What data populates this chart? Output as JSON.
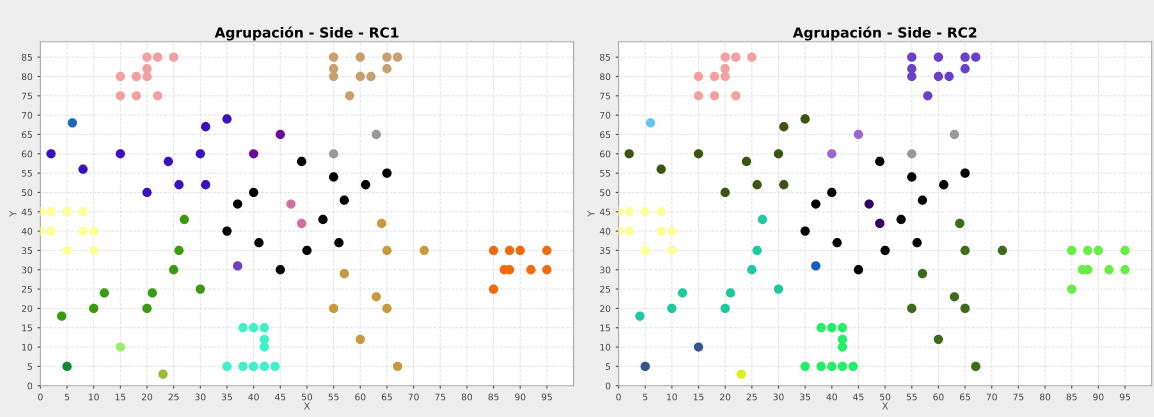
{
  "chart_data": [
    {
      "type": "scatter",
      "title": "Agrupación - Side - RC1",
      "xlabel": "X",
      "ylabel": "Y",
      "xlim": [
        0,
        100
      ],
      "ylim": [
        0,
        89
      ],
      "xticks": [
        0,
        5,
        10,
        15,
        20,
        25,
        30,
        35,
        40,
        45,
        50,
        55,
        60,
        65,
        70,
        75,
        80,
        85,
        90,
        95
      ],
      "yticks": [
        0,
        5,
        10,
        15,
        20,
        25,
        30,
        35,
        40,
        45,
        50,
        55,
        60,
        65,
        70,
        75,
        80,
        85
      ],
      "grid": true,
      "marker": "circle",
      "series": [
        {
          "color": "#f4a0a0",
          "x": [
            20,
            22,
            25,
            20,
            15,
            18,
            20,
            15,
            18,
            22
          ],
          "values": [
            85,
            85,
            85,
            82,
            80,
            80,
            80,
            75,
            75,
            75
          ]
        },
        {
          "color": "#1a6aba",
          "x": [
            6
          ],
          "values": [
            68
          ]
        },
        {
          "color": "#3a10c0",
          "x": [
            2,
            15,
            8,
            24,
            30,
            31,
            35,
            20,
            26,
            31
          ],
          "values": [
            60,
            60,
            56,
            58,
            60,
            67,
            69,
            50,
            52,
            52
          ]
        },
        {
          "color": "#6a0a9a",
          "x": [
            40,
            45
          ],
          "values": [
            60,
            65
          ]
        },
        {
          "color": "#ffff99",
          "x": [
            0,
            2,
            5,
            8,
            0,
            2,
            8,
            10,
            5,
            10
          ],
          "values": [
            45,
            45,
            45,
            45,
            40,
            40,
            40,
            40,
            35,
            35
          ]
        },
        {
          "color": "#3a9a10",
          "x": [
            27,
            26,
            25,
            30,
            12,
            21,
            10,
            20,
            4
          ],
          "values": [
            43,
            35,
            30,
            25,
            24,
            24,
            20,
            20,
            18
          ]
        },
        {
          "color": "#108a30",
          "x": [
            5
          ],
          "values": [
            5
          ]
        },
        {
          "color": "#99f066",
          "x": [
            15
          ],
          "values": [
            10
          ]
        },
        {
          "color": "#99bb33",
          "x": [
            23
          ],
          "values": [
            3
          ]
        },
        {
          "color": "#40f0c8",
          "x": [
            38,
            40,
            42,
            42,
            42,
            35,
            38,
            40,
            42,
            44
          ],
          "values": [
            15,
            15,
            15,
            12,
            10,
            5,
            5,
            5,
            5,
            5
          ]
        },
        {
          "color": "#000000",
          "x": [
            37,
            40,
            35,
            41,
            45,
            49,
            55,
            65,
            61,
            57,
            53,
            56,
            50
          ],
          "values": [
            47,
            50,
            40,
            37,
            30,
            58,
            54,
            55,
            52,
            48,
            43,
            37,
            35
          ]
        },
        {
          "color": "#7040c0",
          "x": [
            37
          ],
          "values": [
            31
          ]
        },
        {
          "color": "#d070a0",
          "x": [
            47,
            49
          ],
          "values": [
            47,
            42
          ]
        },
        {
          "color": "#999999",
          "x": [
            63,
            55
          ],
          "values": [
            65,
            60
          ]
        },
        {
          "color": "#c8a070",
          "x": [
            55,
            60,
            65,
            67,
            55,
            65,
            55,
            60,
            62,
            58
          ],
          "values": [
            85,
            85,
            85,
            85,
            82,
            82,
            80,
            80,
            80,
            75
          ]
        },
        {
          "color": "#c89a40",
          "x": [
            64,
            65,
            72,
            57,
            63,
            55,
            65,
            60,
            67
          ],
          "values": [
            42,
            35,
            35,
            29,
            23,
            20,
            20,
            12,
            5
          ]
        },
        {
          "color": "#f06a10",
          "x": [
            85,
            88,
            90,
            95,
            87,
            88,
            92,
            95,
            85
          ],
          "values": [
            35,
            35,
            35,
            35,
            30,
            30,
            30,
            30,
            25
          ]
        }
      ]
    },
    {
      "type": "scatter",
      "title": "Agrupación - Side - RC2",
      "xlabel": "X",
      "ylabel": "Y",
      "xlim": [
        0,
        100
      ],
      "ylim": [
        0,
        89
      ],
      "xticks": [
        0,
        5,
        10,
        15,
        20,
        25,
        30,
        35,
        40,
        45,
        50,
        55,
        60,
        65,
        70,
        75,
        80,
        85,
        90,
        95
      ],
      "yticks": [
        0,
        5,
        10,
        15,
        20,
        25,
        30,
        35,
        40,
        45,
        50,
        55,
        60,
        65,
        70,
        75,
        80,
        85
      ],
      "grid": true,
      "marker": "circle",
      "series": [
        {
          "color": "#f4a0a0",
          "x": [
            20,
            22,
            25,
            20,
            15,
            18,
            20,
            15,
            18,
            22
          ],
          "values": [
            85,
            85,
            85,
            82,
            80,
            80,
            80,
            75,
            75,
            75
          ]
        },
        {
          "color": "#66c4f0",
          "x": [
            6
          ],
          "values": [
            68
          ]
        },
        {
          "color": "#3a5510",
          "x": [
            2,
            15,
            8,
            24,
            30,
            31,
            35,
            20,
            26,
            31
          ],
          "values": [
            60,
            60,
            56,
            58,
            60,
            67,
            69,
            50,
            52,
            52
          ]
        },
        {
          "color": "#9966cc",
          "x": [
            40,
            45
          ],
          "values": [
            60,
            65
          ]
        },
        {
          "color": "#ffff99",
          "x": [
            0,
            2,
            5,
            8,
            0,
            2,
            8,
            10,
            5,
            10
          ],
          "values": [
            45,
            45,
            45,
            45,
            40,
            40,
            40,
            40,
            35,
            35
          ]
        },
        {
          "color": "#20c8a0",
          "x": [
            27,
            26,
            25,
            30,
            12,
            21,
            10,
            20,
            4
          ],
          "values": [
            43,
            35,
            30,
            25,
            24,
            24,
            20,
            20,
            18
          ]
        },
        {
          "color": "#335588",
          "x": [
            5
          ],
          "values": [
            5
          ]
        },
        {
          "color": "#335588",
          "x": [
            15
          ],
          "values": [
            10
          ]
        },
        {
          "color": "#ddee22",
          "x": [
            23
          ],
          "values": [
            3
          ]
        },
        {
          "color": "#22ee66",
          "x": [
            38,
            40,
            42,
            42,
            42,
            35,
            38,
            40,
            42,
            44
          ],
          "values": [
            15,
            15,
            15,
            12,
            10,
            5,
            5,
            5,
            5,
            5
          ]
        },
        {
          "color": "#000000",
          "x": [
            37,
            40,
            35,
            41,
            45,
            49,
            55,
            65,
            61,
            57,
            53,
            56,
            50
          ],
          "values": [
            47,
            50,
            40,
            37,
            30,
            58,
            54,
            55,
            52,
            48,
            43,
            37,
            35
          ]
        },
        {
          "color": "#1060c0",
          "x": [
            37
          ],
          "values": [
            31
          ]
        },
        {
          "color": "#330066",
          "x": [
            47,
            49
          ],
          "values": [
            47,
            42
          ]
        },
        {
          "color": "#999999",
          "x": [
            63,
            55
          ],
          "values": [
            65,
            60
          ]
        },
        {
          "color": "#6a40c8",
          "x": [
            55,
            60,
            65,
            67,
            55,
            65,
            55,
            60,
            62,
            58
          ],
          "values": [
            85,
            85,
            85,
            85,
            82,
            82,
            80,
            80,
            80,
            75
          ]
        },
        {
          "color": "#3d6b1a",
          "x": [
            64,
            65,
            72,
            57,
            63,
            55,
            65,
            60,
            67
          ],
          "values": [
            42,
            35,
            35,
            29,
            23,
            20,
            20,
            12,
            5
          ]
        },
        {
          "color": "#66ee44",
          "x": [
            85,
            88,
            90,
            95,
            87,
            88,
            92,
            95,
            85
          ],
          "values": [
            35,
            35,
            35,
            35,
            30,
            30,
            30,
            30,
            25
          ]
        }
      ]
    }
  ]
}
